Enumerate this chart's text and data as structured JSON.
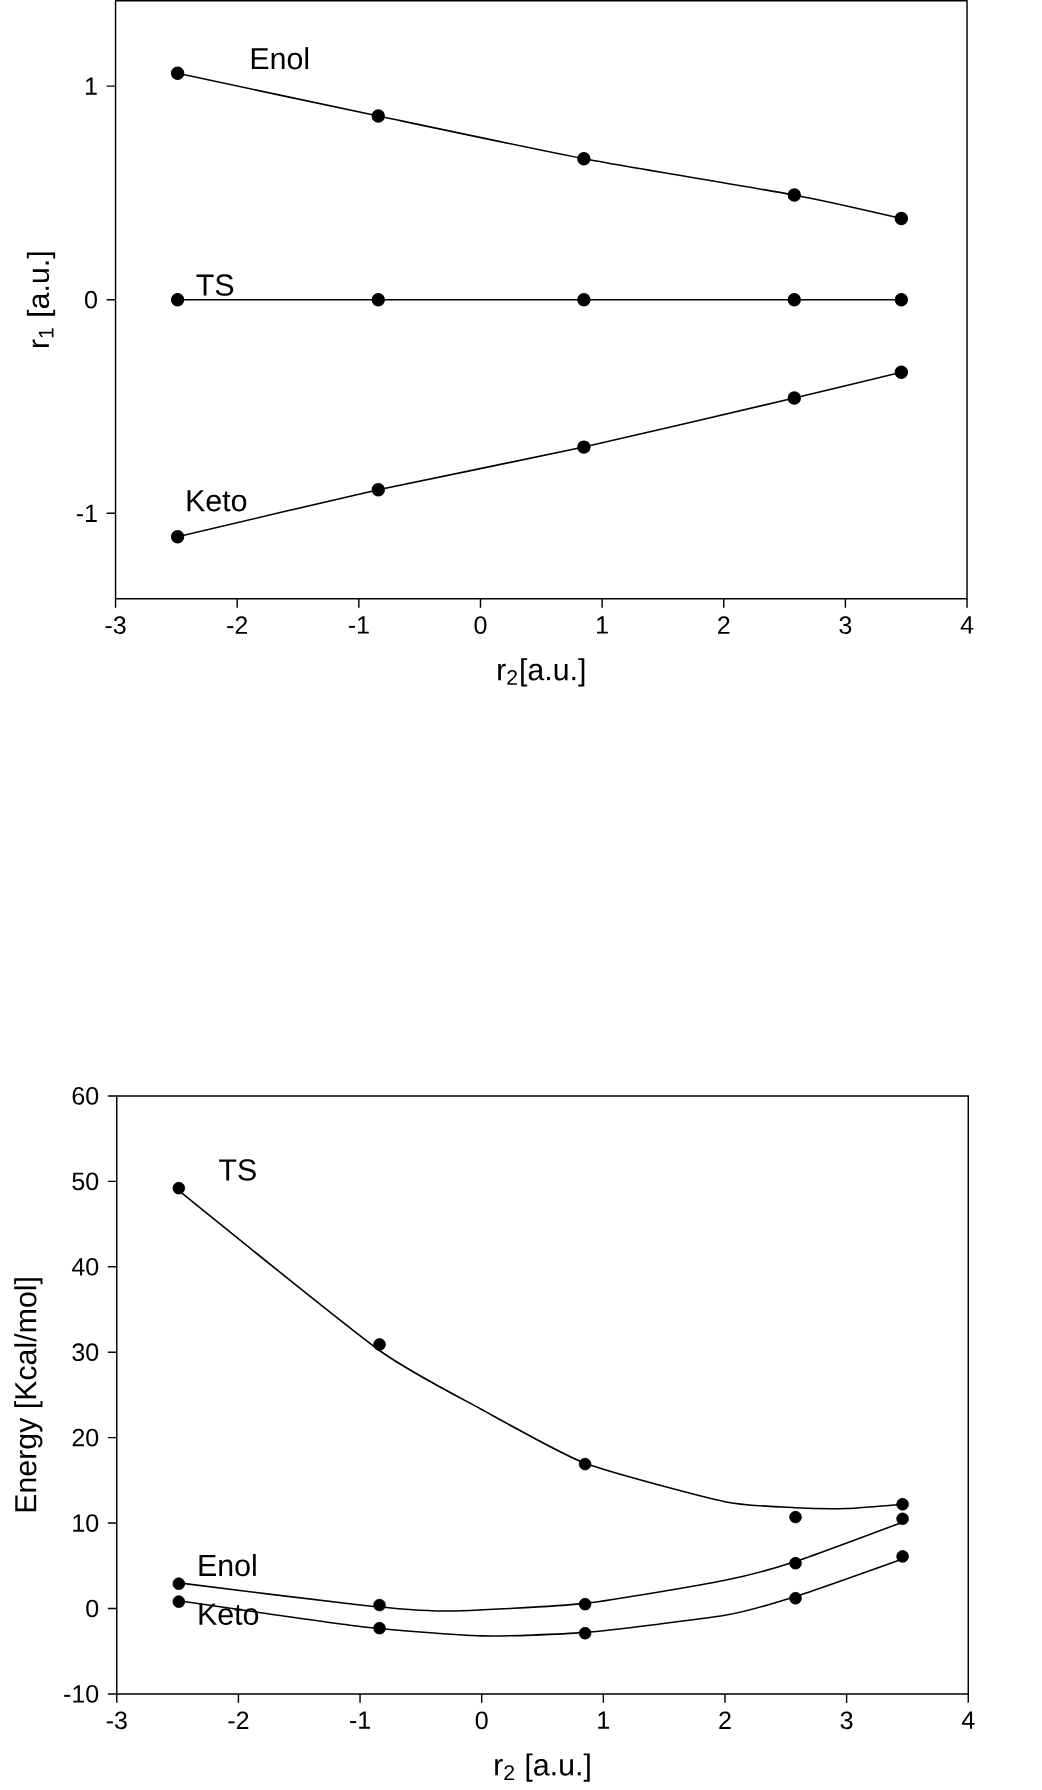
{
  "chart_data": [
    {
      "type": "line",
      "xlabel": "r$_{2}$[a.u.]",
      "ylabel": "r$_{1}$ [a.u.]",
      "xlim": [
        -3,
        4
      ],
      "xticks": [
        -3,
        -2,
        -1,
        0,
        1,
        2,
        3,
        4
      ],
      "ylim": [
        -1.4,
        1.4
      ],
      "yticks": [
        -1,
        0,
        1
      ],
      "marker": "circle",
      "x": [
        -2.49,
        -0.84,
        0.85,
        2.58,
        3.46
      ],
      "series": [
        {
          "name": "Enol",
          "color": "#000000",
          "values": [
            1.06,
            0.86,
            0.66,
            0.49,
            0.38
          ]
        },
        {
          "name": "TS",
          "color": "#000000",
          "values": [
            0,
            0,
            0,
            0,
            0
          ]
        },
        {
          "name": "Keto",
          "color": "#000000",
          "values": [
            -1.11,
            -0.89,
            -0.69,
            -0.46,
            -0.34
          ]
        }
      ]
    },
    {
      "type": "scatter",
      "xlabel": "r$_{2}$ [a.u.]",
      "ylabel": "Energy [Kcal/mol]",
      "xlim": [
        -3,
        4
      ],
      "xticks": [
        -3,
        -2,
        -1,
        0,
        1,
        2,
        3,
        4
      ],
      "ylim": [
        -10,
        60
      ],
      "yticks": [
        -10,
        0,
        10,
        20,
        30,
        40,
        50,
        60
      ],
      "marker": "circle",
      "x": [
        -2.49,
        -0.84,
        0.85,
        2.58,
        3.46
      ],
      "series": [
        {
          "name": "TS",
          "color": "#000000",
          "values": [
            49.2,
            30.9,
            16.9,
            10.7,
            12.2
          ]
        },
        {
          "name": "Enol",
          "color": "#000000",
          "values": [
            2.9,
            0.4,
            0.5,
            5.3,
            10.5
          ]
        },
        {
          "name": "Keto",
          "color": "#000000",
          "values": [
            0.8,
            -2.3,
            -2.9,
            1.2,
            6.1
          ]
        },
        {
          "type": "line",
          "marker": "none",
          "color": "#000000",
          "x": [
            -2.49,
            -0.84,
            0,
            0.85,
            2,
            2.58,
            3,
            3.46
          ],
          "values": [
            48.9,
            30.2,
            23.3,
            17,
            12.5,
            11.8,
            11.7,
            12.2
          ]
        },
        {
          "type": "line",
          "marker": "none",
          "color": "#000000",
          "x": [
            -2.49,
            -1,
            -0.3,
            0.85,
            2,
            2.58,
            3.46
          ],
          "values": [
            3.0,
            0.4,
            -0.3,
            0.6,
            3.3,
            5.5,
            10.1
          ]
        },
        {
          "type": "line",
          "marker": "none",
          "color": "#000000",
          "x": [
            -2.49,
            -1,
            0,
            0.85,
            2,
            2.58,
            3.46
          ],
          "values": [
            0.9,
            -2.1,
            -3.2,
            -2.8,
            -0.8,
            1.4,
            5.8
          ]
        }
      ]
    }
  ]
}
